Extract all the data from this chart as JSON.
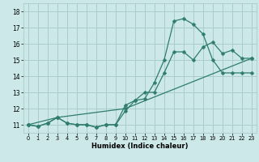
{
  "xlabel": "Humidex (Indice chaleur)",
  "background_color": "#cce8e8",
  "line_color": "#2e7d6e",
  "grid_color": "#aacccc",
  "xlim": [
    -0.5,
    23.5
  ],
  "ylim": [
    10.5,
    18.5
  ],
  "xticks": [
    0,
    1,
    2,
    3,
    4,
    5,
    6,
    7,
    8,
    9,
    10,
    11,
    12,
    13,
    14,
    15,
    16,
    17,
    18,
    19,
    20,
    21,
    22,
    23
  ],
  "yticks": [
    11,
    12,
    13,
    14,
    15,
    16,
    17,
    18
  ],
  "line1_x": [
    0,
    1,
    2,
    3,
    4,
    5,
    6,
    7,
    8,
    9,
    10,
    11,
    12,
    13,
    14,
    15,
    16,
    17,
    18,
    19,
    20,
    21,
    22,
    23
  ],
  "line1_y": [
    11.0,
    10.9,
    11.1,
    11.45,
    11.1,
    11.0,
    11.0,
    10.85,
    11.0,
    11.0,
    11.85,
    12.5,
    13.0,
    13.0,
    14.2,
    15.5,
    15.5,
    15.0,
    15.8,
    16.1,
    15.4,
    15.6,
    15.1,
    15.1
  ],
  "line2_x": [
    0,
    1,
    2,
    3,
    4,
    5,
    6,
    7,
    8,
    9,
    10,
    11,
    12,
    13,
    14,
    15,
    16,
    17,
    18,
    19,
    20,
    21,
    22,
    23
  ],
  "line2_y": [
    11.0,
    10.9,
    11.1,
    11.45,
    11.1,
    11.0,
    11.0,
    10.85,
    11.0,
    11.0,
    12.2,
    12.5,
    12.6,
    13.6,
    15.0,
    17.4,
    17.55,
    17.2,
    16.6,
    15.0,
    14.2,
    14.2,
    14.2,
    14.2
  ],
  "line3_x": [
    0,
    3,
    10,
    23
  ],
  "line3_y": [
    11.0,
    11.45,
    12.0,
    15.1
  ],
  "marker_size": 2.5,
  "linewidth": 0.9
}
